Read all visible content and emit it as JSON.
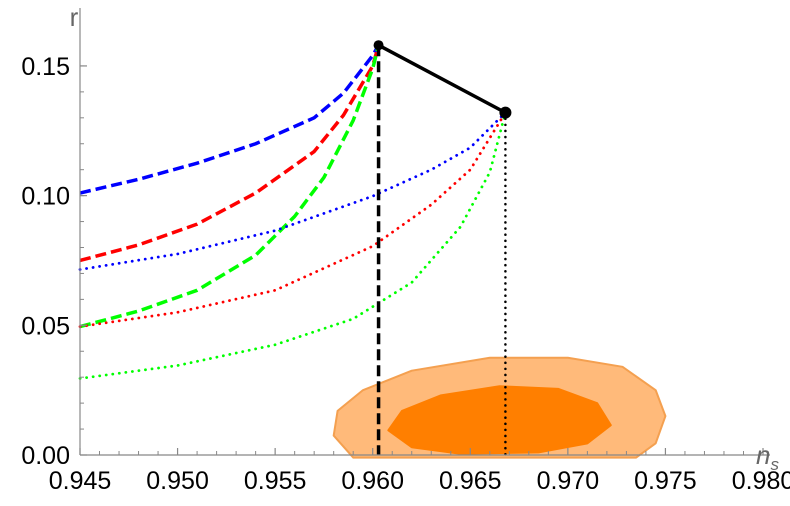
{
  "chart_data": {
    "type": "line",
    "title": "",
    "xlabel": "n",
    "xlabel_sub": "s",
    "ylabel": "r",
    "xlim": [
      0.945,
      0.98
    ],
    "ylim": [
      0,
      0.16
    ],
    "grid": false,
    "xticks": [
      0.945,
      0.95,
      0.955,
      0.96,
      0.965,
      0.97,
      0.975,
      0.98
    ],
    "xtick_labels": [
      "0.945",
      "0.950",
      "0.955",
      "0.960",
      "0.965",
      "0.970",
      "0.975",
      "0.980"
    ],
    "yticks": [
      0,
      0.05,
      0.1,
      0.15
    ],
    "ytick_labels": [
      "0.00",
      "0.05",
      "0.10",
      "0.15"
    ],
    "endpoints": [
      {
        "x": 0.9603,
        "y": 0.158
      },
      {
        "x": 0.9668,
        "y": 0.132
      }
    ],
    "series": [
      {
        "style": "dashed",
        "color": "#0000ff",
        "points": [
          [
            0.945,
            0.101
          ],
          [
            0.948,
            0.1063
          ],
          [
            0.951,
            0.1125
          ],
          [
            0.954,
            0.12
          ],
          [
            0.957,
            0.13
          ],
          [
            0.9585,
            0.1395
          ],
          [
            0.96,
            0.154
          ],
          [
            0.9603,
            0.158
          ]
        ]
      },
      {
        "style": "dashed",
        "color": "#ff0000",
        "points": [
          [
            0.945,
            0.075
          ],
          [
            0.948,
            0.081
          ],
          [
            0.951,
            0.089
          ],
          [
            0.954,
            0.101
          ],
          [
            0.957,
            0.117
          ],
          [
            0.9585,
            0.131
          ],
          [
            0.96,
            0.15
          ],
          [
            0.9603,
            0.158
          ]
        ]
      },
      {
        "style": "dashed",
        "color": "#00ff00",
        "points": [
          [
            0.945,
            0.0495
          ],
          [
            0.948,
            0.0555
          ],
          [
            0.951,
            0.0635
          ],
          [
            0.954,
            0.077
          ],
          [
            0.956,
            0.092
          ],
          [
            0.9575,
            0.107
          ],
          [
            0.959,
            0.129
          ],
          [
            0.96,
            0.149
          ],
          [
            0.9603,
            0.158
          ]
        ]
      },
      {
        "style": "dotted",
        "color": "#0000ff",
        "points": [
          [
            0.945,
            0.0715
          ],
          [
            0.95,
            0.0775
          ],
          [
            0.955,
            0.0865
          ],
          [
            0.96,
            0.0998
          ],
          [
            0.963,
            0.11
          ],
          [
            0.965,
            0.1185
          ],
          [
            0.9668,
            0.132
          ]
        ]
      },
      {
        "style": "dotted",
        "color": "#ff0000",
        "points": [
          [
            0.945,
            0.0495
          ],
          [
            0.95,
            0.055
          ],
          [
            0.955,
            0.0635
          ],
          [
            0.96,
            0.0805
          ],
          [
            0.963,
            0.0965
          ],
          [
            0.965,
            0.11
          ],
          [
            0.9668,
            0.132
          ]
        ]
      },
      {
        "style": "dotted",
        "color": "#00ff00",
        "points": [
          [
            0.945,
            0.0295
          ],
          [
            0.95,
            0.0345
          ],
          [
            0.955,
            0.0425
          ],
          [
            0.959,
            0.0525
          ],
          [
            0.962,
            0.0665
          ],
          [
            0.9645,
            0.088
          ],
          [
            0.966,
            0.109
          ],
          [
            0.9668,
            0.132
          ]
        ]
      }
    ],
    "vertical_lines": [
      {
        "x": 0.9603,
        "y_top": 0.158,
        "style": "dashed",
        "color": "#000000"
      },
      {
        "x": 0.9668,
        "y_top": 0.132,
        "style": "dotted",
        "color": "#000000"
      }
    ],
    "contours": [
      {
        "level": "outer",
        "fill": "#ffba7a",
        "stroke": "#f4a050",
        "points": [
          [
            0.958,
            0.0075
          ],
          [
            0.9582,
            0.017
          ],
          [
            0.9595,
            0.025
          ],
          [
            0.962,
            0.0325
          ],
          [
            0.966,
            0.0375
          ],
          [
            0.97,
            0.0375
          ],
          [
            0.9728,
            0.034
          ],
          [
            0.9745,
            0.025
          ],
          [
            0.975,
            0.015
          ],
          [
            0.9745,
            0.0045
          ],
          [
            0.9735,
            -0.001
          ],
          [
            0.959,
            -0.001
          ],
          [
            0.958,
            0.0075
          ]
        ]
      },
      {
        "level": "inner",
        "fill": "#ff7f00",
        "stroke": "#ff7f00",
        "points": [
          [
            0.9608,
            0.0095
          ],
          [
            0.9615,
            0.017
          ],
          [
            0.9635,
            0.023
          ],
          [
            0.9665,
            0.0265
          ],
          [
            0.9695,
            0.0255
          ],
          [
            0.9715,
            0.02
          ],
          [
            0.9722,
            0.0115
          ],
          [
            0.971,
            0.0045
          ],
          [
            0.9685,
            0.001
          ],
          [
            0.9645,
            0.0005
          ],
          [
            0.962,
            0.003
          ],
          [
            0.9608,
            0.0095
          ]
        ]
      }
    ]
  }
}
